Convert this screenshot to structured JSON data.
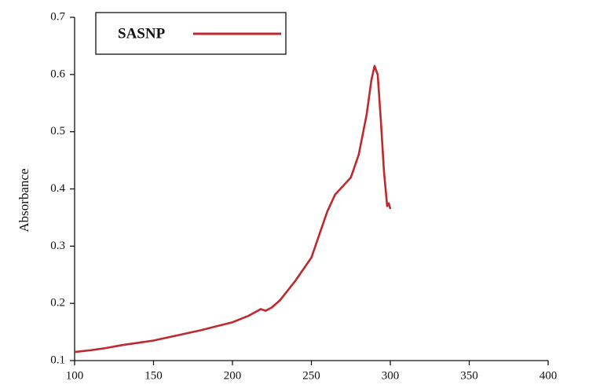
{
  "chart_data": {
    "type": "line",
    "y_label": "Absorbance",
    "xlim": [
      100,
      400
    ],
    "xticks": [
      100,
      150,
      200,
      250,
      300,
      350,
      400
    ],
    "ylim": [
      0.1,
      0.7
    ],
    "yticks": [
      0.1,
      0.2,
      0.3,
      0.4,
      0.5,
      0.6,
      0.7
    ],
    "legend": "top-left",
    "series": [
      {
        "name": "SASNP",
        "color": "#c0282d",
        "x": [
          100,
          110,
          120,
          130,
          140,
          150,
          160,
          170,
          180,
          190,
          200,
          210,
          218,
          221,
          225,
          230,
          240,
          250,
          255,
          260,
          265,
          270,
          275,
          280,
          285,
          288,
          290,
          292,
          294,
          296,
          298,
          299,
          300
        ],
        "values": [
          0.115,
          0.118,
          0.122,
          0.127,
          0.131,
          0.135,
          0.141,
          0.147,
          0.153,
          0.16,
          0.167,
          0.178,
          0.19,
          0.187,
          0.193,
          0.205,
          0.24,
          0.28,
          0.32,
          0.36,
          0.39,
          0.405,
          0.42,
          0.46,
          0.53,
          0.59,
          0.615,
          0.6,
          0.52,
          0.43,
          0.37,
          0.375,
          0.365
        ]
      }
    ]
  }
}
